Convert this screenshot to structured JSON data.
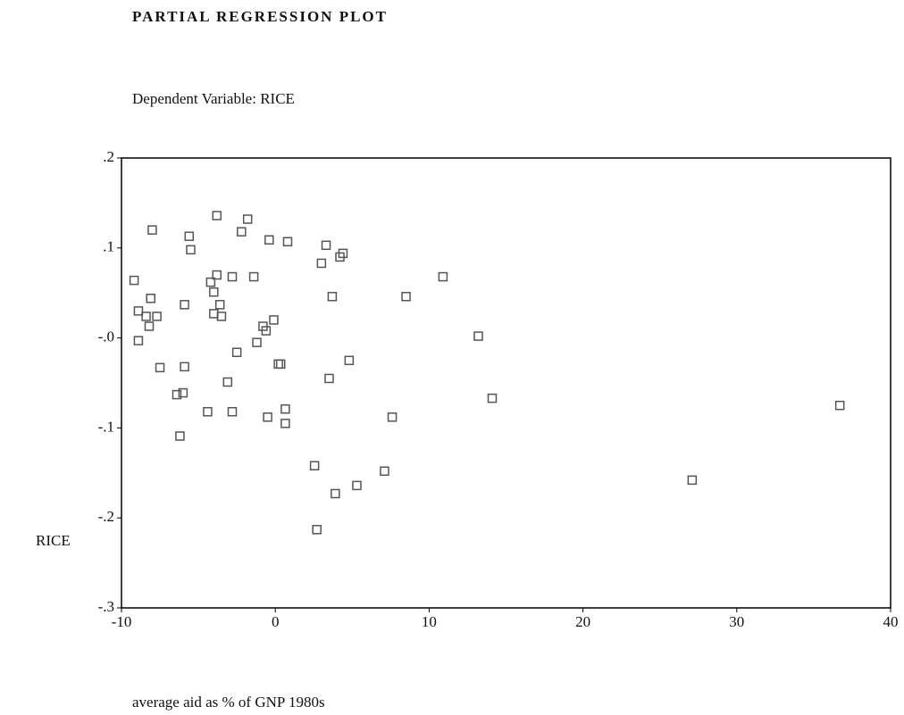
{
  "chart_data": {
    "type": "scatter",
    "title": "PARTIAL REGRESSION PLOT",
    "subtitle": "Dependent Variable: RICE",
    "y_label": "RICE",
    "x_label": "average aid as % of GNP 1980s",
    "color": "#555555",
    "xlim": [
      -10,
      40
    ],
    "ylim": [
      -0.3,
      0.2
    ],
    "xticks": [
      -10,
      0,
      10,
      20,
      30,
      40
    ],
    "yticks": [
      {
        "value": 0.2,
        "label": ".2"
      },
      {
        "value": 0.1,
        "label": ".1"
      },
      {
        "value": 0,
        "label": "-.0"
      },
      {
        "value": -0.1,
        "label": "-.1"
      },
      {
        "value": -0.2,
        "label": "-.2"
      },
      {
        "value": -0.3,
        "label": "-.3"
      }
    ],
    "x": [
      -9.18,
      -8.0,
      -3.8,
      -1.8,
      -5.6,
      -5.5,
      -2.2,
      -0.4,
      0.8,
      3.3,
      4.4,
      4.2,
      3.0,
      -3.8,
      -2.8,
      -1.4,
      10.9,
      -4.2,
      -4.0,
      -8.1,
      3.7,
      8.5,
      -5.9,
      -3.6,
      -8.9,
      -4.0,
      -3.5,
      -8.4,
      -7.7,
      -8.2,
      -0.1,
      -0.8,
      -0.6,
      13.2,
      -8.9,
      -1.2,
      -2.5,
      4.8,
      -7.5,
      -5.9,
      0.2,
      0.35,
      3.5,
      -3.1,
      -6.4,
      -6.0,
      14.1,
      36.7,
      -4.4,
      -2.8,
      0.65,
      -0.5,
      7.6,
      0.65,
      -6.2,
      2.55,
      7.1,
      27.1,
      5.3,
      3.9,
      2.7
    ],
    "values": [
      0.064,
      0.12,
      0.136,
      0.132,
      0.113,
      0.098,
      0.118,
      0.109,
      0.107,
      0.103,
      0.094,
      0.09,
      0.083,
      0.07,
      0.068,
      0.068,
      0.068,
      0.062,
      0.051,
      0.044,
      0.046,
      0.046,
      0.037,
      0.037,
      0.03,
      0.027,
      0.024,
      0.024,
      0.024,
      0.013,
      0.02,
      0.013,
      0.008,
      0.002,
      -0.003,
      -0.005,
      -0.016,
      -0.025,
      -0.033,
      -0.032,
      -0.029,
      -0.029,
      -0.045,
      -0.049,
      -0.063,
      -0.061,
      -0.067,
      -0.075,
      -0.082,
      -0.082,
      -0.079,
      -0.088,
      -0.088,
      -0.095,
      -0.109,
      -0.142,
      -0.148,
      -0.158,
      -0.164,
      -0.173,
      -0.213
    ]
  }
}
